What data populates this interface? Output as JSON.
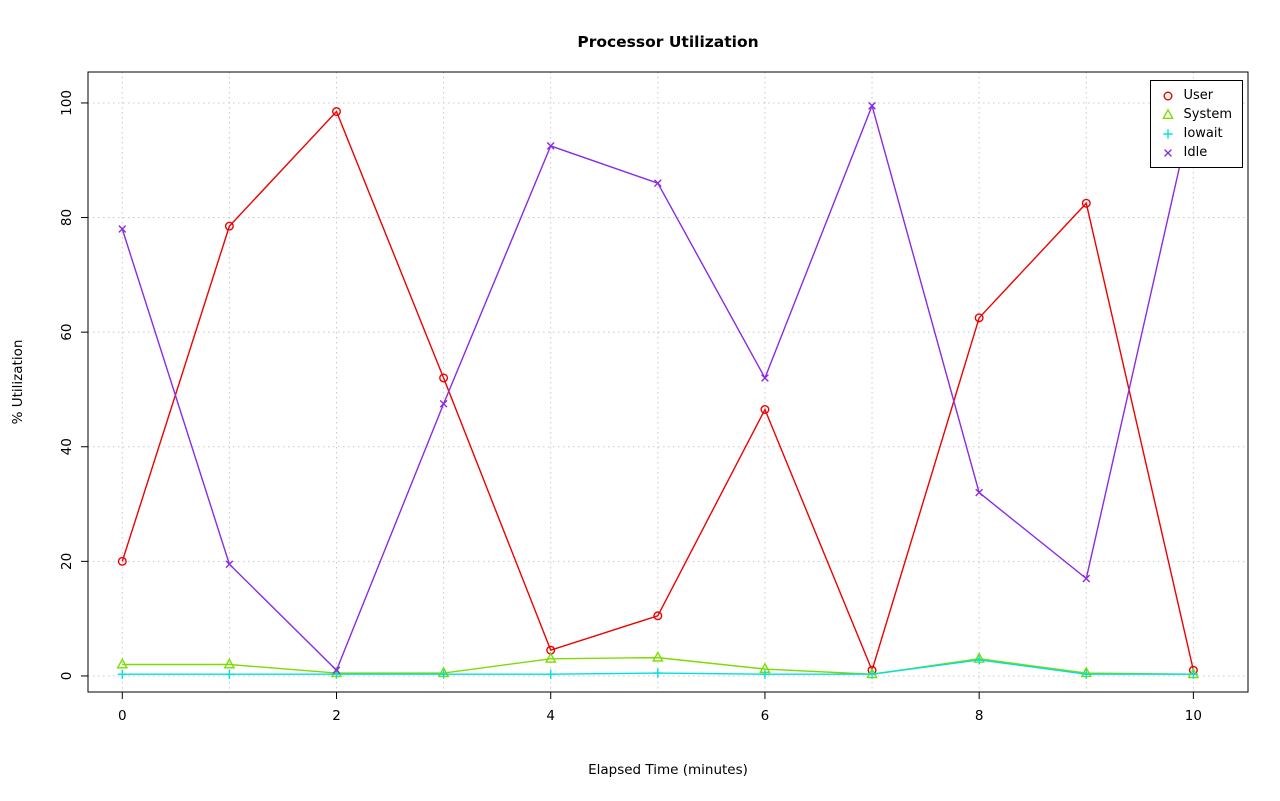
{
  "title": "Processor Utilization",
  "xlabel": "Elapsed Time (minutes)",
  "ylabel": "% Utilization",
  "chart_data": {
    "type": "line",
    "title": "Processor Utilization",
    "xlabel": "Elapsed Time (minutes)",
    "ylabel": "% Utilization",
    "x": [
      0,
      1,
      2,
      3,
      4,
      5,
      6,
      7,
      8,
      9,
      10
    ],
    "xticks": [
      0,
      2,
      4,
      6,
      8,
      10
    ],
    "yticks": [
      0,
      20,
      40,
      60,
      80,
      100
    ],
    "xgrid": [
      0,
      1,
      2,
      3,
      4,
      5,
      6,
      7,
      8,
      9,
      10
    ],
    "xlim": [
      -0.32,
      10.51
    ],
    "ylim": [
      -2.8,
      105.4
    ],
    "grid": true,
    "grid_style": "dotted",
    "legend_position": "top-right",
    "background": "#ffffff",
    "grid_color": "#c8c8c8",
    "axis_color": "#000000",
    "series": [
      {
        "name": "User",
        "color": "#ee0000",
        "marker": "circle",
        "values": [
          20,
          78.5,
          98.5,
          52,
          4.5,
          10.5,
          46.5,
          1,
          62.5,
          82.5,
          1
        ]
      },
      {
        "name": "System",
        "color": "#7cdc00",
        "marker": "triangle",
        "values": [
          2,
          2,
          0.5,
          0.5,
          3,
          3.2,
          1.2,
          0.3,
          3,
          0.5,
          0.3
        ]
      },
      {
        "name": "Iowait",
        "color": "#00e0e0",
        "marker": "plus",
        "values": [
          0.3,
          0.3,
          0.3,
          0.3,
          0.3,
          0.5,
          0.3,
          0.3,
          2.8,
          0.3,
          0.3
        ]
      },
      {
        "name": "Idle",
        "color": "#8a2be2",
        "marker": "x",
        "values": [
          78,
          19.5,
          1,
          47.5,
          92.5,
          86,
          52,
          99.5,
          32,
          17,
          99.5
        ]
      }
    ]
  }
}
